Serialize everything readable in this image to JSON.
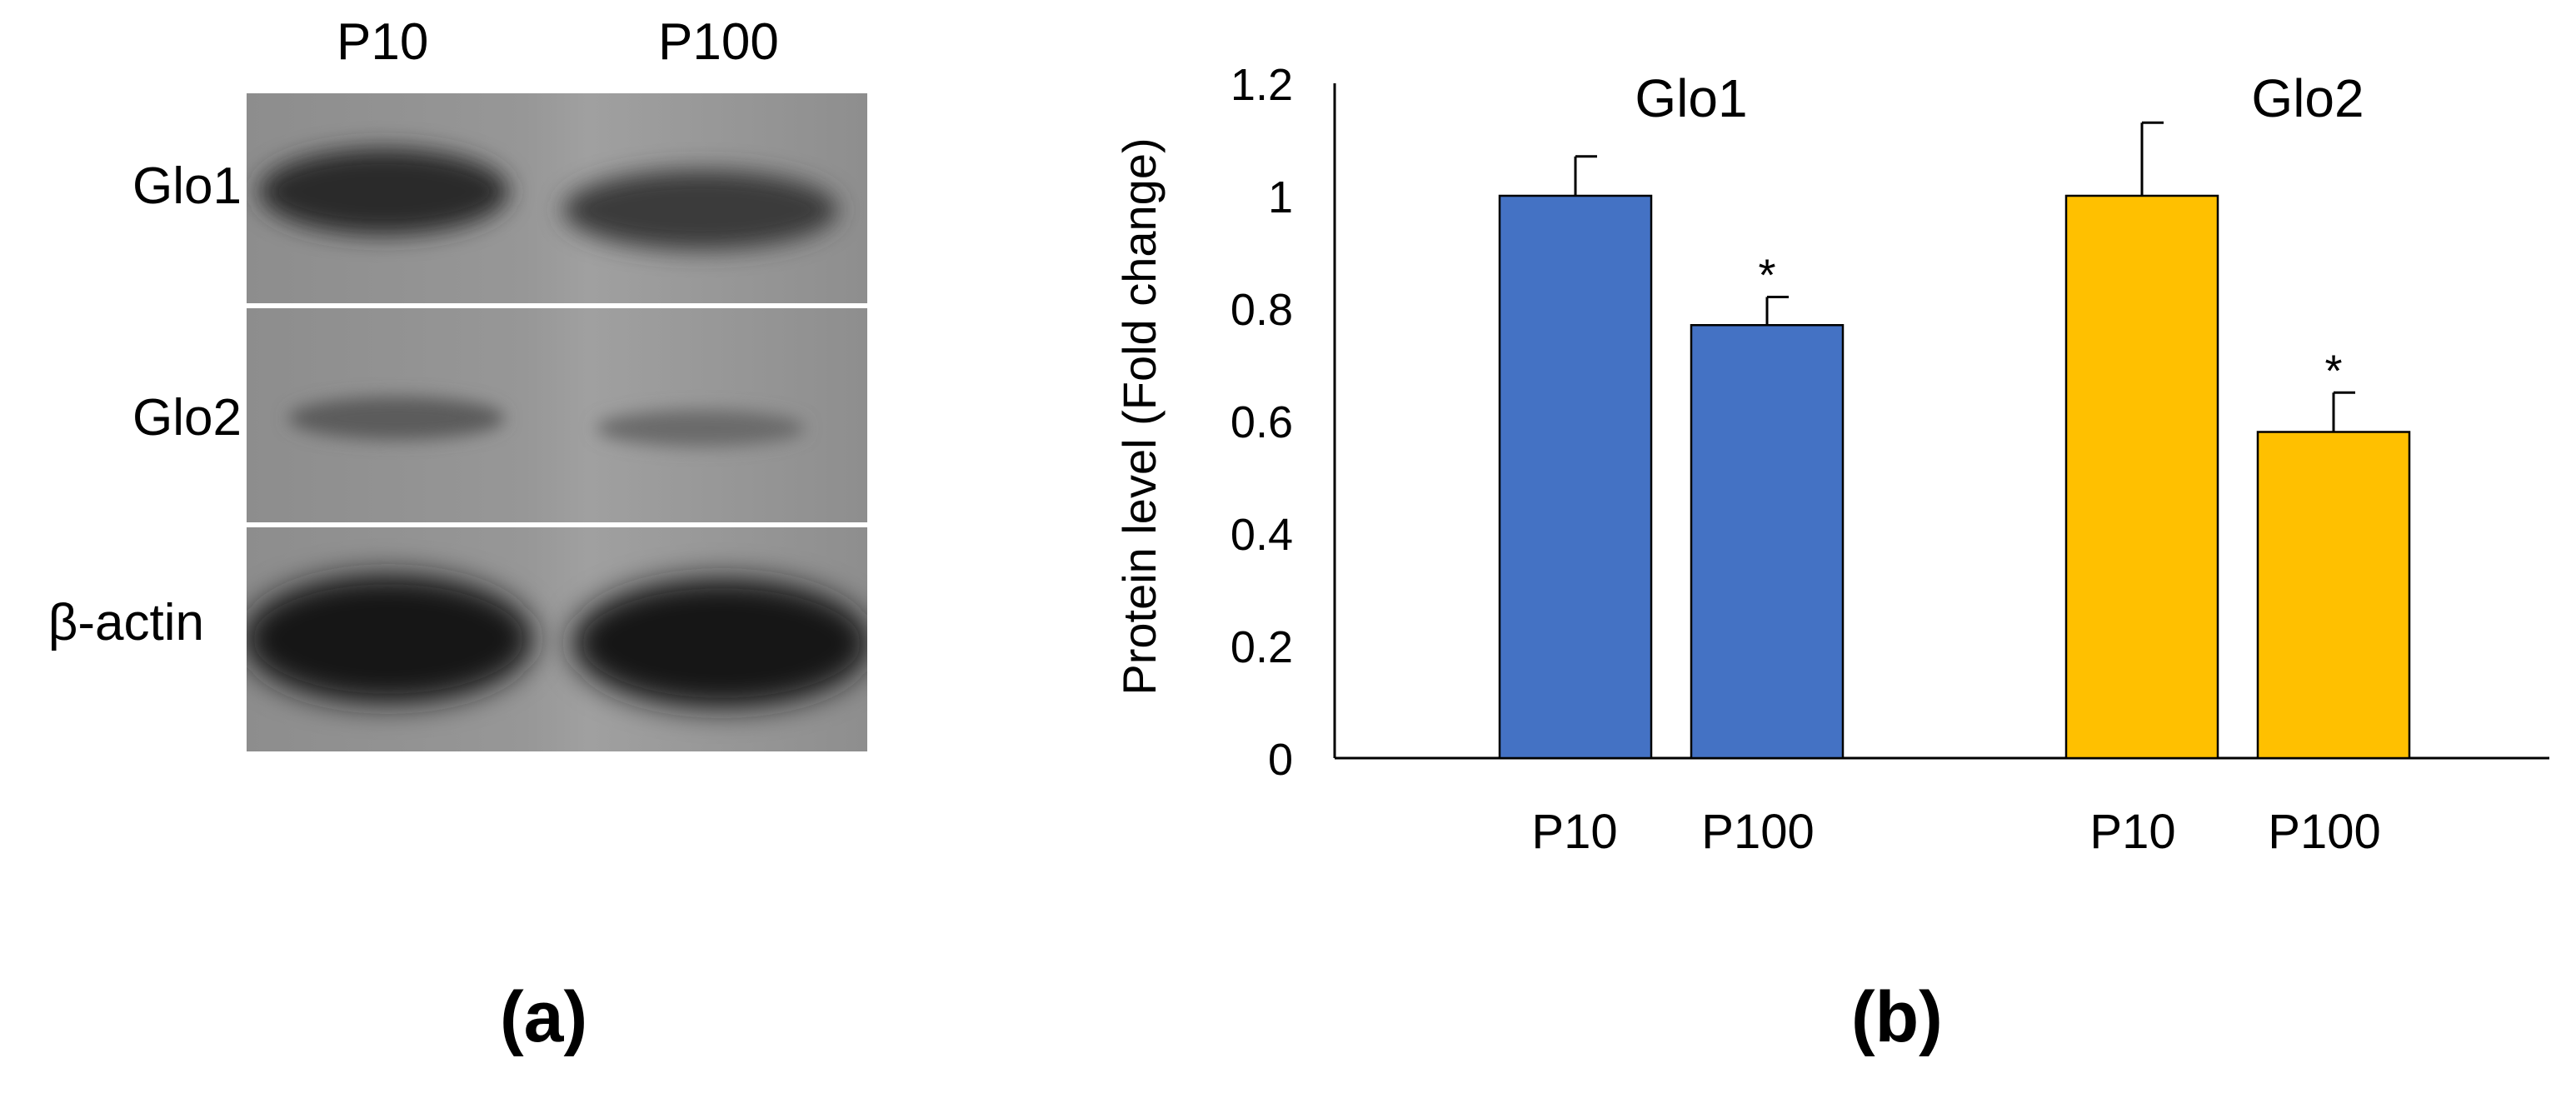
{
  "panel_a": {
    "panel_label": "(a)",
    "lane_labels": [
      "P10",
      "P100"
    ],
    "row_labels": [
      "Glo1",
      "Glo2",
      "β-actin"
    ]
  },
  "panel_b": {
    "panel_label": "(b)"
  },
  "chart_data": {
    "type": "bar",
    "title": "",
    "xlabel": "",
    "ylabel": "Protein level (Fold change)",
    "ylim": [
      0,
      1.2
    ],
    "yticks": [
      0,
      0.2,
      0.4,
      0.6,
      0.8,
      1,
      1.2
    ],
    "ytick_labels": [
      "0",
      "0.2",
      "0.4",
      "0.6",
      "0.8",
      "1",
      "1.2"
    ],
    "groups": [
      {
        "name": "Glo1",
        "color": "#4472c4",
        "categories": [
          "P10",
          "P100"
        ],
        "values": [
          1.0,
          0.77
        ],
        "errors": [
          0.07,
          0.05
        ],
        "annotations": [
          "",
          "*"
        ]
      },
      {
        "name": "Glo2",
        "color": "#ffc000",
        "categories": [
          "P10",
          "P100"
        ],
        "values": [
          1.0,
          0.58
        ],
        "errors": [
          0.13,
          0.07
        ],
        "annotations": [
          "",
          "*"
        ]
      }
    ]
  }
}
